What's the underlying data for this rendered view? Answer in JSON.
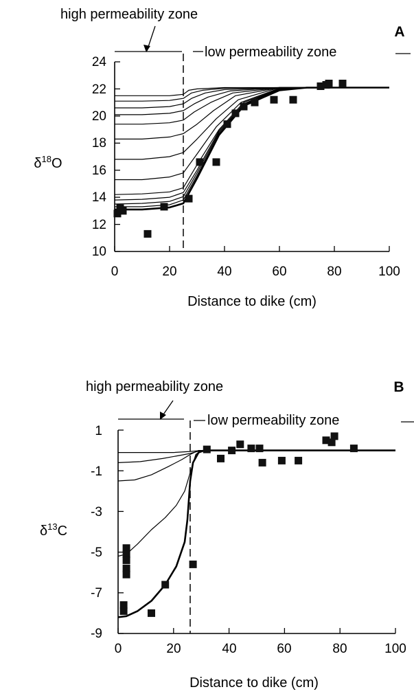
{
  "chart_data": [
    {
      "type": "line",
      "panel_label": "A",
      "xlabel": "Distance to dike (cm)",
      "ylabel": {
        "symbol": "δ",
        "sup": "18",
        "element": "O"
      },
      "xlim": [
        0,
        100
      ],
      "ylim": [
        10,
        24
      ],
      "xticks": [
        "0",
        "20",
        "40",
        "60",
        "80",
        "100"
      ],
      "yticks": [
        "10",
        "12",
        "14",
        "16",
        "18",
        "20",
        "22",
        "24"
      ],
      "zone_high_label": "high permeability zone",
      "zone_low_label": "low permeability zone",
      "zone_boundary_x": 25,
      "grid": false,
      "series_style": "thin model curves; thickest curve = final profile",
      "series": [
        {
          "values": [
            [
              0,
              21.5
            ],
            [
              10,
              21.5
            ],
            [
              20,
              21.5
            ],
            [
              25,
              21.6
            ],
            [
              27,
              21.9
            ],
            [
              30,
              22.0
            ],
            [
              40,
              22.1
            ],
            [
              60,
              22.1
            ],
            [
              100,
              22.1
            ]
          ]
        },
        {
          "values": [
            [
              0,
              21.1
            ],
            [
              10,
              21.1
            ],
            [
              20,
              21.15
            ],
            [
              25,
              21.3
            ],
            [
              28,
              21.7
            ],
            [
              32,
              21.9
            ],
            [
              40,
              22.05
            ],
            [
              60,
              22.1
            ],
            [
              100,
              22.1
            ]
          ]
        },
        {
          "values": [
            [
              0,
              20.6
            ],
            [
              10,
              20.6
            ],
            [
              20,
              20.7
            ],
            [
              25,
              20.9
            ],
            [
              28,
              21.3
            ],
            [
              33,
              21.7
            ],
            [
              40,
              21.95
            ],
            [
              60,
              22.1
            ],
            [
              100,
              22.1
            ]
          ]
        },
        {
          "values": [
            [
              0,
              20.1
            ],
            [
              10,
              20.1
            ],
            [
              20,
              20.2
            ],
            [
              25,
              20.4
            ],
            [
              29,
              20.9
            ],
            [
              34,
              21.4
            ],
            [
              42,
              21.85
            ],
            [
              60,
              22.1
            ],
            [
              100,
              22.1
            ]
          ]
        },
        {
          "values": [
            [
              0,
              19.4
            ],
            [
              10,
              19.4
            ],
            [
              20,
              19.5
            ],
            [
              25,
              19.7
            ],
            [
              29,
              20.3
            ],
            [
              35,
              21.0
            ],
            [
              43,
              21.7
            ],
            [
              60,
              22.1
            ],
            [
              100,
              22.1
            ]
          ]
        },
        {
          "values": [
            [
              0,
              18.3
            ],
            [
              10,
              18.3
            ],
            [
              20,
              18.45
            ],
            [
              25,
              18.7
            ],
            [
              30,
              19.4
            ],
            [
              36,
              20.4
            ],
            [
              44,
              21.5
            ],
            [
              60,
              22.1
            ],
            [
              100,
              22.1
            ]
          ]
        },
        {
          "values": [
            [
              0,
              16.8
            ],
            [
              10,
              16.8
            ],
            [
              20,
              17.0
            ],
            [
              25,
              17.3
            ],
            [
              30,
              18.3
            ],
            [
              37,
              19.8
            ],
            [
              45,
              21.2
            ],
            [
              60,
              22.1
            ],
            [
              100,
              22.1
            ]
          ]
        },
        {
          "values": [
            [
              0,
              15.3
            ],
            [
              10,
              15.3
            ],
            [
              20,
              15.5
            ],
            [
              25,
              15.8
            ],
            [
              30,
              17.2
            ],
            [
              37,
              19.2
            ],
            [
              46,
              21.0
            ],
            [
              60,
              22.05
            ],
            [
              100,
              22.1
            ]
          ]
        },
        {
          "values": [
            [
              0,
              14.2
            ],
            [
              10,
              14.25
            ],
            [
              20,
              14.4
            ],
            [
              25,
              14.7
            ],
            [
              30,
              16.4
            ],
            [
              38,
              19.0
            ],
            [
              47,
              21.0
            ],
            [
              60,
              22.0
            ],
            [
              70,
              22.1
            ],
            [
              100,
              22.1
            ]
          ]
        },
        {
          "values": [
            [
              0,
              13.8
            ],
            [
              10,
              13.85
            ],
            [
              20,
              14.0
            ],
            [
              25,
              14.35
            ],
            [
              30,
              16.0
            ],
            [
              38,
              18.9
            ],
            [
              47,
              20.9
            ],
            [
              60,
              22.0
            ],
            [
              70,
              22.1
            ],
            [
              100,
              22.1
            ]
          ]
        },
        {
          "values": [
            [
              0,
              13.5
            ],
            [
              10,
              13.55
            ],
            [
              20,
              13.7
            ],
            [
              25,
              14.05
            ],
            [
              30,
              15.8
            ],
            [
              38,
              18.8
            ],
            [
              47,
              20.85
            ],
            [
              60,
              21.95
            ],
            [
              70,
              22.1
            ],
            [
              100,
              22.1
            ]
          ]
        },
        {
          "values": [
            [
              0,
              13.3
            ],
            [
              10,
              13.3
            ],
            [
              20,
              13.45
            ],
            [
              25,
              13.8
            ],
            [
              30,
              15.6
            ],
            [
              38,
              18.7
            ],
            [
              47,
              20.8
            ],
            [
              60,
              21.9
            ],
            [
              70,
              22.1
            ],
            [
              100,
              22.1
            ]
          ]
        },
        {
          "values": [
            [
              0,
              13.1
            ],
            [
              10,
              13.1
            ],
            [
              20,
              13.25
            ],
            [
              25,
              13.55
            ],
            [
              30,
              15.4
            ],
            [
              38,
              18.6
            ],
            [
              47,
              20.75
            ],
            [
              60,
              21.9
            ],
            [
              70,
              22.1
            ],
            [
              100,
              22.1
            ]
          ],
          "bold": true
        }
      ],
      "points": [
        [
          1,
          12.8
        ],
        [
          2,
          13.2
        ],
        [
          3,
          13.0
        ],
        [
          12,
          11.3
        ],
        [
          18,
          13.3
        ],
        [
          27,
          13.9
        ],
        [
          31,
          16.6
        ],
        [
          37,
          16.6
        ],
        [
          41,
          19.4
        ],
        [
          44,
          20.2
        ],
        [
          47,
          20.7
        ],
        [
          51,
          21.0
        ],
        [
          58,
          21.2
        ],
        [
          65,
          21.2
        ],
        [
          75,
          22.2
        ],
        [
          77,
          22.3
        ],
        [
          78,
          22.4
        ],
        [
          83,
          22.4
        ]
      ]
    },
    {
      "type": "line",
      "panel_label": "B",
      "xlabel": "Distance to dike (cm)",
      "ylabel": {
        "symbol": "δ",
        "sup": "13",
        "element": "C"
      },
      "xlim": [
        0,
        100
      ],
      "ylim": [
        -9,
        1
      ],
      "xticks": [
        "0",
        "20",
        "40",
        "60",
        "80",
        "100"
      ],
      "yticks": [
        "1",
        "-1",
        "-3",
        "-5",
        "-7",
        "-9"
      ],
      "zone_high_label": "high permeability zone",
      "zone_low_label": "low permeability zone",
      "zone_boundary_x": 26,
      "grid": false,
      "series_style": "thin model curves; thickest curve = final profile",
      "series": [
        {
          "values": [
            [
              0,
              -0.1
            ],
            [
              20,
              -0.1
            ],
            [
              26,
              -0.05
            ],
            [
              30,
              0.0
            ],
            [
              100,
              0.0
            ]
          ]
        },
        {
          "values": [
            [
              0,
              -0.6
            ],
            [
              8,
              -0.55
            ],
            [
              16,
              -0.4
            ],
            [
              22,
              -0.25
            ],
            [
              26,
              -0.15
            ],
            [
              30,
              0.0
            ],
            [
              100,
              0.0
            ]
          ]
        },
        {
          "values": [
            [
              0,
              -1.5
            ],
            [
              6,
              -1.45
            ],
            [
              12,
              -1.2
            ],
            [
              18,
              -0.8
            ],
            [
              23,
              -0.45
            ],
            [
              26,
              -0.2
            ],
            [
              29,
              0.0
            ],
            [
              100,
              0.0
            ]
          ]
        },
        {
          "values": [
            [
              0,
              -5.2
            ],
            [
              3,
              -5.1
            ],
            [
              7,
              -4.6
            ],
            [
              12,
              -3.9
            ],
            [
              17,
              -3.3
            ],
            [
              21,
              -2.7
            ],
            [
              24,
              -2.0
            ],
            [
              26,
              -1.1
            ],
            [
              28,
              -0.2
            ],
            [
              30,
              0.0
            ],
            [
              100,
              0.0
            ]
          ]
        },
        {
          "values": [
            [
              0,
              -8.2
            ],
            [
              3,
              -8.15
            ],
            [
              7,
              -7.9
            ],
            [
              12,
              -7.4
            ],
            [
              17,
              -6.6
            ],
            [
              21,
              -5.7
            ],
            [
              24,
              -4.5
            ],
            [
              25,
              -3.4
            ],
            [
              26,
              -1.5
            ],
            [
              27,
              -0.6
            ],
            [
              29,
              -0.1
            ],
            [
              31,
              0.0
            ],
            [
              100,
              0.0
            ]
          ],
          "bold": true
        }
      ],
      "points": [
        [
          2,
          -7.6
        ],
        [
          2,
          -7.9
        ],
        [
          3,
          -4.8
        ],
        [
          3,
          -5.1
        ],
        [
          3,
          -5.4
        ],
        [
          3,
          -5.8
        ],
        [
          3,
          -6.1
        ],
        [
          12,
          -8.0
        ],
        [
          17,
          -6.6
        ],
        [
          27,
          -5.6
        ],
        [
          32,
          0.05
        ],
        [
          37,
          -0.4
        ],
        [
          41,
          0.0
        ],
        [
          44,
          0.3
        ],
        [
          48,
          0.1
        ],
        [
          51,
          0.1
        ],
        [
          52,
          -0.6
        ],
        [
          59,
          -0.5
        ],
        [
          65,
          -0.5
        ],
        [
          75,
          0.5
        ],
        [
          77,
          0.4
        ],
        [
          78,
          0.7
        ],
        [
          85,
          0.1
        ]
      ]
    }
  ]
}
